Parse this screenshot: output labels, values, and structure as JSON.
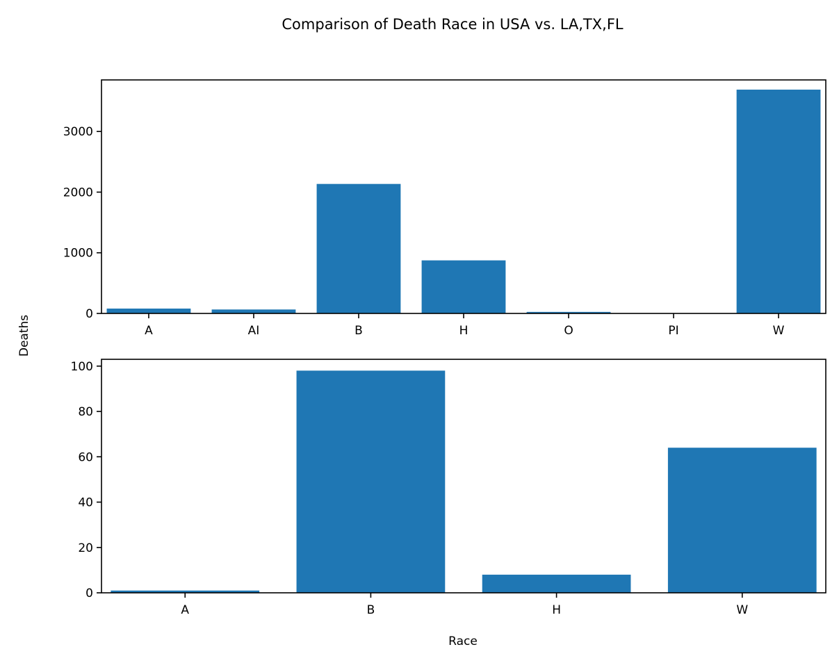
{
  "figure": {
    "title": "Comparison of Death Race in USA vs. LA,TX,FL",
    "ylabel": "Deaths",
    "xlabel": "Race"
  },
  "colors": {
    "bar": "#1f77b4"
  },
  "chart_data": [
    {
      "type": "bar",
      "categories": [
        "A",
        "AI",
        "B",
        "H",
        "O",
        "PI",
        "W"
      ],
      "values": [
        80,
        65,
        2135,
        875,
        25,
        3,
        3690
      ],
      "ylim": [
        0,
        3850
      ],
      "yticks": [
        0,
        1000,
        2000,
        3000
      ],
      "grid": false
    },
    {
      "type": "bar",
      "categories": [
        "A",
        "B",
        "H",
        "W"
      ],
      "values": [
        1,
        98,
        8,
        64
      ],
      "ylim": [
        0,
        103
      ],
      "yticks": [
        0,
        20,
        40,
        60,
        80,
        100
      ],
      "grid": false
    }
  ]
}
